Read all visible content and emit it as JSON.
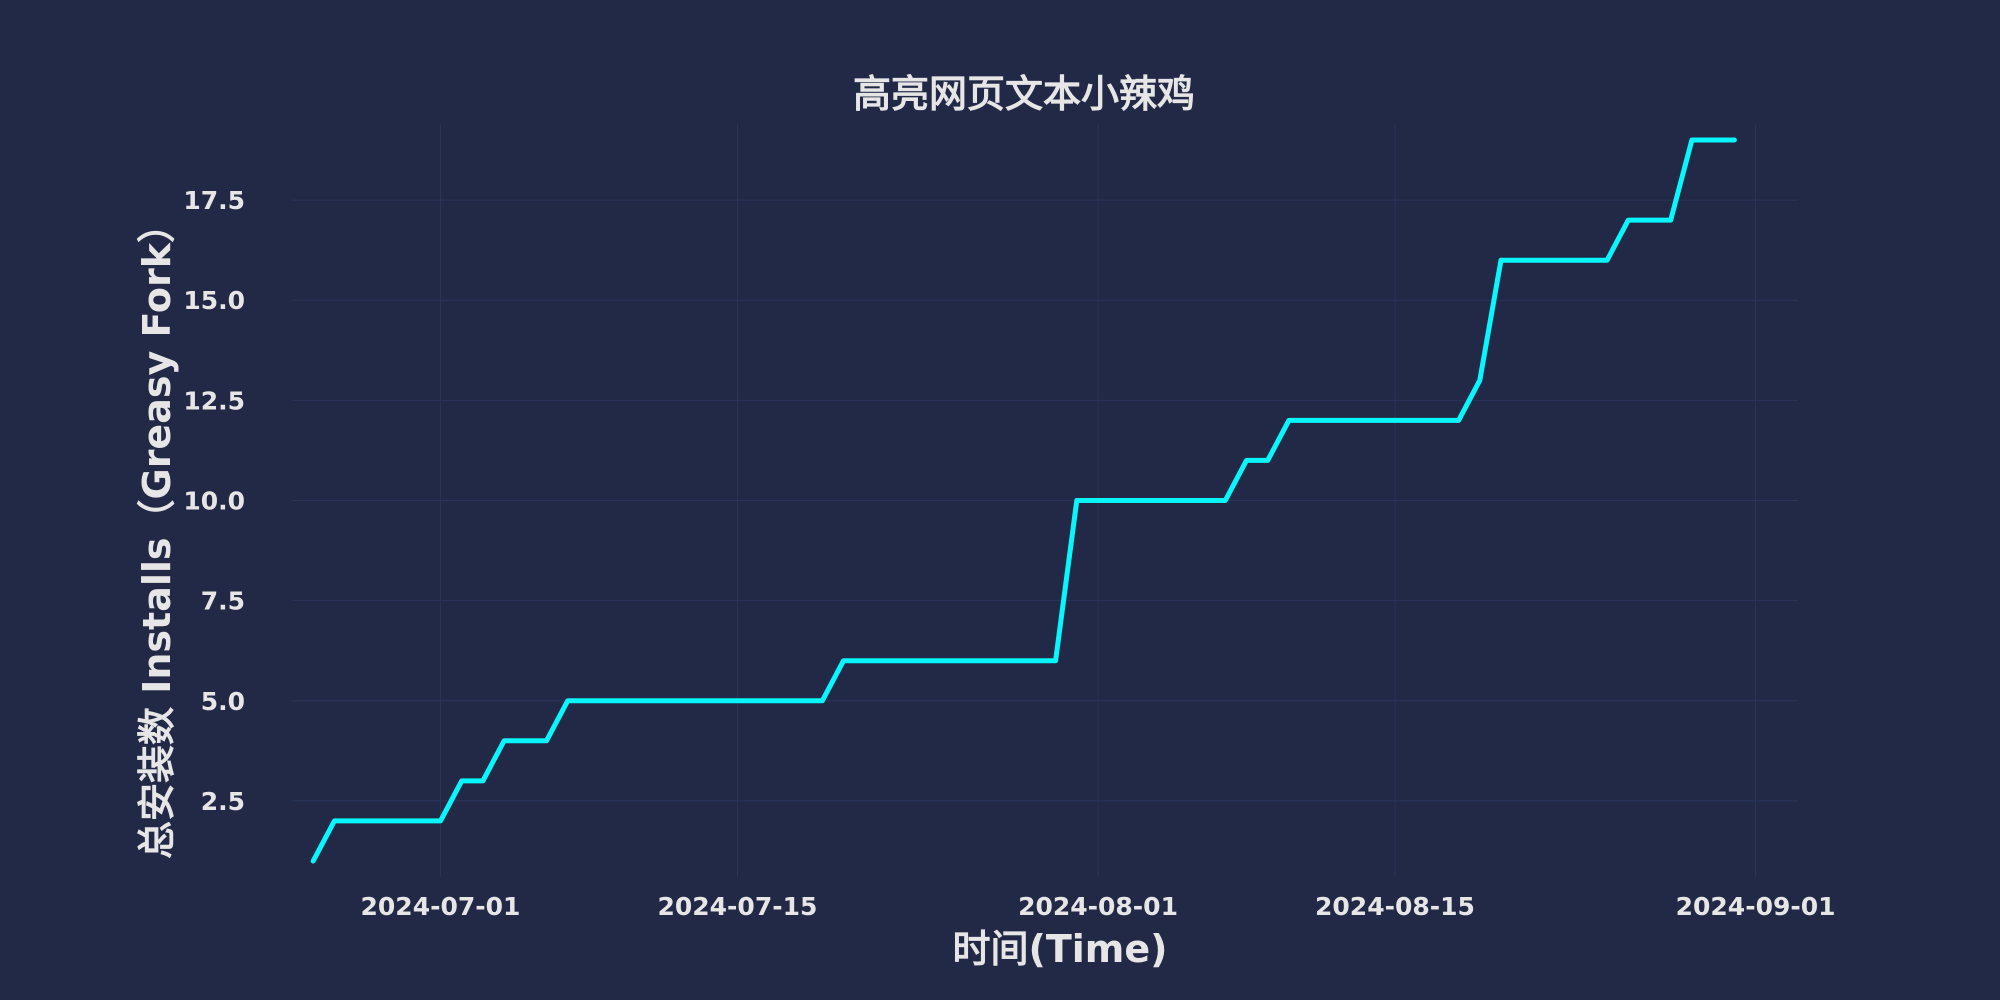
{
  "colors": {
    "background": "#212946",
    "grid": "#2A3459",
    "text": "#E6E6E6",
    "line": "#08F7FE"
  },
  "chart_data": {
    "type": "line",
    "title": "高亮网页文本小辣鸡",
    "xlabel": "时间(Time)",
    "ylabel": "总安装数 Installs（Greasy Fork）",
    "xlim": [
      "2024-06-24",
      "2024-09-03"
    ],
    "ylim": [
      0.6,
      19.4
    ],
    "xticks": [
      "2024-07-01",
      "2024-07-15",
      "2024-08-01",
      "2024-08-15",
      "2024-09-01"
    ],
    "yticks": [
      2.5,
      5.0,
      7.5,
      10.0,
      12.5,
      15.0,
      17.5
    ],
    "grid": true,
    "series": [
      {
        "x": [
          "2024-06-25",
          "2024-06-26",
          "2024-06-27",
          "2024-06-28",
          "2024-06-29",
          "2024-06-30",
          "2024-07-01",
          "2024-07-02",
          "2024-07-03",
          "2024-07-04",
          "2024-07-05",
          "2024-07-06",
          "2024-07-07",
          "2024-07-08",
          "2024-07-09",
          "2024-07-10",
          "2024-07-11",
          "2024-07-12",
          "2024-07-13",
          "2024-07-14",
          "2024-07-15",
          "2024-07-16",
          "2024-07-17",
          "2024-07-18",
          "2024-07-19",
          "2024-07-20",
          "2024-07-21",
          "2024-07-22",
          "2024-07-23",
          "2024-07-24",
          "2024-07-25",
          "2024-07-26",
          "2024-07-27",
          "2024-07-28",
          "2024-07-29",
          "2024-07-30",
          "2024-07-31",
          "2024-08-01",
          "2024-08-02",
          "2024-08-03",
          "2024-08-04",
          "2024-08-05",
          "2024-08-06",
          "2024-08-07",
          "2024-08-08",
          "2024-08-09",
          "2024-08-10",
          "2024-08-11",
          "2024-08-12",
          "2024-08-13",
          "2024-08-14",
          "2024-08-15",
          "2024-08-16",
          "2024-08-17",
          "2024-08-18",
          "2024-08-19",
          "2024-08-20",
          "2024-08-21",
          "2024-08-22",
          "2024-08-23",
          "2024-08-24",
          "2024-08-25",
          "2024-08-26",
          "2024-08-27",
          "2024-08-28",
          "2024-08-29",
          "2024-08-30",
          "2024-08-31"
        ],
        "y": [
          1,
          2,
          2,
          2,
          2,
          2,
          2,
          3,
          3,
          4,
          4,
          4,
          5,
          5,
          5,
          5,
          5,
          5,
          5,
          5,
          5,
          5,
          5,
          5,
          5,
          6,
          6,
          6,
          6,
          6,
          6,
          6,
          6,
          6,
          6,
          6,
          10,
          10,
          10,
          10,
          10,
          10,
          10,
          10,
          11,
          11,
          12,
          12,
          12,
          12,
          12,
          12,
          12,
          12,
          12,
          13,
          16,
          16,
          16,
          16,
          16,
          16,
          17,
          17,
          17,
          19,
          19,
          19
        ]
      }
    ]
  }
}
